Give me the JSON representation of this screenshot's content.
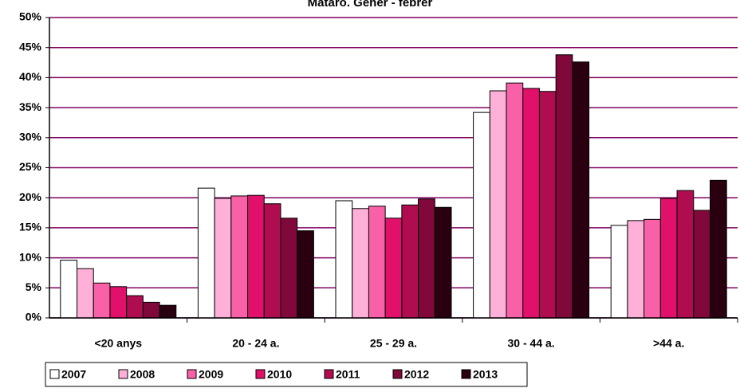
{
  "chart_data": {
    "type": "bar",
    "title": "Mataró. Gener - febrer",
    "categories": [
      "<20 anys",
      "20 - 24 a.",
      "25 - 29 a.",
      "30 - 44 a.",
      ">44 a."
    ],
    "series": [
      {
        "name": "2007",
        "color": "#ffffff",
        "values": [
          9.6,
          21.6,
          19.5,
          34.2,
          15.4
        ]
      },
      {
        "name": "2008",
        "color": "#ffb0d8",
        "values": [
          8.2,
          19.9,
          18.2,
          37.8,
          16.2
        ]
      },
      {
        "name": "2009",
        "color": "#f860a8",
        "values": [
          5.8,
          20.3,
          18.6,
          39.1,
          16.4
        ]
      },
      {
        "name": "2010",
        "color": "#e0106b",
        "values": [
          5.2,
          20.4,
          16.6,
          38.2,
          19.9
        ]
      },
      {
        "name": "2011",
        "color": "#b00c50",
        "values": [
          3.7,
          19.0,
          18.8,
          37.7,
          21.2
        ]
      },
      {
        "name": "2012",
        "color": "#80083a",
        "values": [
          2.6,
          16.6,
          19.8,
          43.8,
          17.9
        ]
      },
      {
        "name": "2013",
        "color": "#2a0010",
        "values": [
          2.1,
          14.5,
          18.4,
          42.6,
          22.9
        ]
      }
    ],
    "ylim": [
      0,
      50
    ],
    "yticks": [
      {
        "value": 0,
        "label": "0%"
      },
      {
        "value": 5,
        "label": "5%"
      },
      {
        "value": 10,
        "label": "10%"
      },
      {
        "value": 15,
        "label": "15%"
      },
      {
        "value": 20,
        "label": "20%"
      },
      {
        "value": 25,
        "label": "25%"
      },
      {
        "value": 30,
        "label": "30%"
      },
      {
        "value": 35,
        "label": "35%"
      },
      {
        "value": 40,
        "label": "40%"
      },
      {
        "value": 45,
        "label": "45%"
      },
      {
        "value": 50,
        "label": "50%"
      }
    ],
    "grid": true,
    "grid_color": "#800060",
    "legend": "bottom"
  }
}
